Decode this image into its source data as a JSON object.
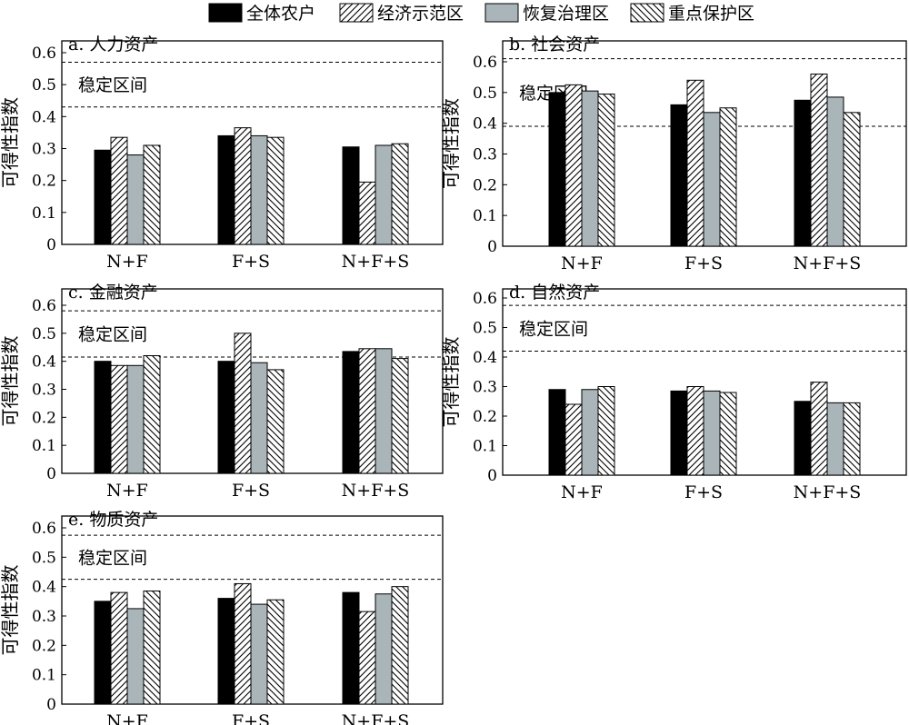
{
  "legend": {
    "items": [
      {
        "label": "全体农户",
        "key": "all"
      },
      {
        "label": "经济示范区",
        "key": "econ"
      },
      {
        "label": "恢复治理区",
        "key": "restore"
      },
      {
        "label": "重点保护区",
        "key": "protect"
      }
    ]
  },
  "colors": {
    "all": "#000000",
    "restore": "#a9b5b9",
    "hatch_bg": "#ffffff",
    "stroke": "#000000"
  },
  "chart_data": [
    {
      "type": "bar",
      "title": "a. 人力资产",
      "stable_label": "稳定区间",
      "ylabel": "可得性指数",
      "ylim": [
        0,
        0.6
      ],
      "yticks": [
        0,
        0.1,
        0.2,
        0.3,
        0.4,
        0.5,
        0.6
      ],
      "stable_band": [
        0.43,
        0.57
      ],
      "categories": [
        "N+F",
        "F+S",
        "N+F+S"
      ],
      "series": [
        {
          "name": "全体农户",
          "key": "all",
          "values": [
            0.295,
            0.34,
            0.305
          ]
        },
        {
          "name": "经济示范区",
          "key": "econ",
          "values": [
            0.335,
            0.365,
            0.195
          ]
        },
        {
          "name": "恢复治理区",
          "key": "restore",
          "values": [
            0.28,
            0.34,
            0.31
          ]
        },
        {
          "name": "重点保护区",
          "key": "protect",
          "values": [
            0.31,
            0.335,
            0.315
          ]
        }
      ]
    },
    {
      "type": "bar",
      "title": "b. 社会资产",
      "stable_label": "稳定区间",
      "ylabel": "可得性指数",
      "ylim": [
        0,
        0.62
      ],
      "yticks": [
        0,
        0.1,
        0.2,
        0.3,
        0.4,
        0.5,
        0.6
      ],
      "stable_band": [
        0.39,
        0.61
      ],
      "categories": [
        "N+F",
        "F+S",
        "N+F+S"
      ],
      "series": [
        {
          "name": "全体农户",
          "key": "all",
          "values": [
            0.5,
            0.46,
            0.475
          ]
        },
        {
          "name": "经济示范区",
          "key": "econ",
          "values": [
            0.525,
            0.54,
            0.56
          ]
        },
        {
          "name": "恢复治理区",
          "key": "restore",
          "values": [
            0.505,
            0.435,
            0.485
          ]
        },
        {
          "name": "重点保护区",
          "key": "protect",
          "values": [
            0.495,
            0.45,
            0.435
          ]
        }
      ]
    },
    {
      "type": "bar",
      "title": "c. 金融资产",
      "stable_label": "稳定区间",
      "ylabel": "可得性指数",
      "ylim": [
        0,
        0.6
      ],
      "yticks": [
        0,
        0.1,
        0.2,
        0.3,
        0.4,
        0.5,
        0.6
      ],
      "stable_band": [
        0.415,
        0.58
      ],
      "categories": [
        "N+F",
        "F+S",
        "N+F+S"
      ],
      "series": [
        {
          "name": "全体农户",
          "key": "all",
          "values": [
            0.4,
            0.4,
            0.435
          ]
        },
        {
          "name": "经济示范区",
          "key": "econ",
          "values": [
            0.385,
            0.5,
            0.445
          ]
        },
        {
          "name": "恢复治理区",
          "key": "restore",
          "values": [
            0.385,
            0.395,
            0.445
          ]
        },
        {
          "name": "重点保护区",
          "key": "protect",
          "values": [
            0.42,
            0.37,
            0.41
          ]
        }
      ]
    },
    {
      "type": "bar",
      "title": "d. 自然资产",
      "stable_label": "稳定区间",
      "ylabel": "可得性指数",
      "ylim": [
        0,
        0.6
      ],
      "yticks": [
        0,
        0.1,
        0.2,
        0.3,
        0.4,
        0.5,
        0.6
      ],
      "stable_band": [
        0.42,
        0.575
      ],
      "categories": [
        "N+F",
        "F+S",
        "N+F+S"
      ],
      "series": [
        {
          "name": "全体农户",
          "key": "all",
          "values": [
            0.29,
            0.285,
            0.25
          ]
        },
        {
          "name": "经济示范区",
          "key": "econ",
          "values": [
            0.24,
            0.3,
            0.315
          ]
        },
        {
          "name": "恢复治理区",
          "key": "restore",
          "values": [
            0.29,
            0.285,
            0.245
          ]
        },
        {
          "name": "重点保护区",
          "key": "protect",
          "values": [
            0.3,
            0.28,
            0.245
          ]
        }
      ]
    },
    {
      "type": "bar",
      "title": "e. 物质资产",
      "stable_label": "稳定区间",
      "ylabel": "可得性指数",
      "ylim": [
        0,
        0.6
      ],
      "yticks": [
        0,
        0.1,
        0.2,
        0.3,
        0.4,
        0.5,
        0.6
      ],
      "stable_band": [
        0.425,
        0.575
      ],
      "categories": [
        "N+F",
        "F+S",
        "N+F+S"
      ],
      "series": [
        {
          "name": "全体农户",
          "key": "all",
          "values": [
            0.35,
            0.36,
            0.38
          ]
        },
        {
          "name": "经济示范区",
          "key": "econ",
          "values": [
            0.38,
            0.41,
            0.315
          ]
        },
        {
          "name": "恢复治理区",
          "key": "restore",
          "values": [
            0.325,
            0.34,
            0.375
          ]
        },
        {
          "name": "重点保护区",
          "key": "protect",
          "values": [
            0.385,
            0.355,
            0.4
          ]
        }
      ]
    }
  ]
}
